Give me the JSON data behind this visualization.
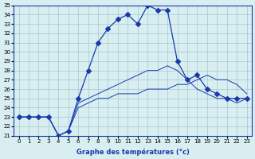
{
  "xlabel": "Graphe des températures (°c)",
  "x_hours": [
    0,
    1,
    2,
    3,
    4,
    5,
    6,
    7,
    8,
    9,
    10,
    11,
    12,
    13,
    14,
    15,
    16,
    17,
    18,
    19,
    20,
    21,
    22,
    23
  ],
  "temp_main": [
    23,
    23,
    23,
    23,
    21,
    21.5,
    25,
    28,
    31,
    32.5,
    33.5,
    34,
    33,
    35,
    34.5,
    34.5,
    29,
    27,
    27.5,
    26,
    25.5,
    25,
    25,
    25
  ],
  "temp_low": [
    23,
    23,
    23,
    23,
    21,
    21.5,
    24,
    24.5,
    25,
    25,
    25.5,
    25.5,
    25.5,
    26,
    26,
    26,
    26.5,
    26.5,
    27,
    27.5,
    27,
    27,
    26.5,
    25.5
  ],
  "temp_high": [
    23,
    23,
    23,
    23,
    21,
    21.5,
    24.5,
    25,
    25.5,
    26,
    26.5,
    27,
    27.5,
    28,
    28,
    28.5,
    28,
    27,
    26,
    25.5,
    25,
    25,
    24.5,
    25
  ],
  "ylim": [
    21,
    35
  ],
  "yticks": [
    21,
    22,
    23,
    24,
    25,
    26,
    27,
    28,
    29,
    30,
    31,
    32,
    33,
    34,
    35
  ],
  "bg_color": "#d8eef0",
  "line_color": "#1a3aab",
  "grid_color": "#a0c8d0",
  "marker": "D",
  "marker_size": 3
}
